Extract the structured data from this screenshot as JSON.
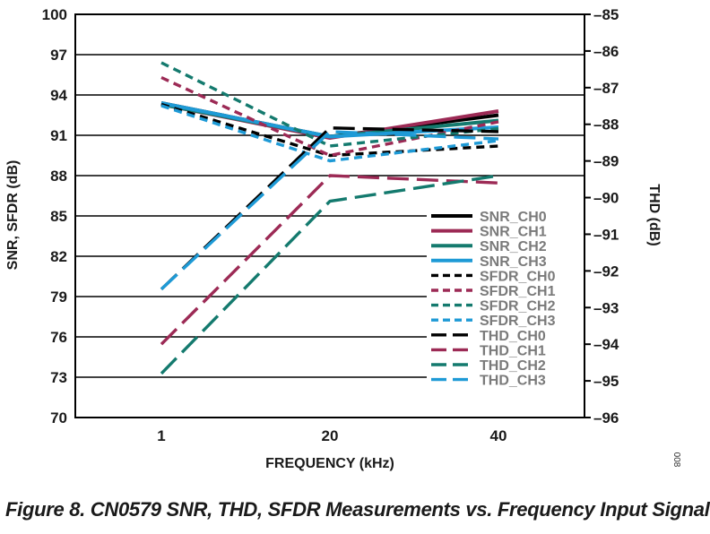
{
  "chart_data": {
    "type": "line",
    "title": "",
    "xlabel": "FREQUENCY (kHz)",
    "ylabel": "SNR, SFDR (dB)",
    "y2label": "THD (dB)",
    "categories": [
      "1",
      "20",
      "40"
    ],
    "ylim": [
      70,
      100
    ],
    "yticks": [
      100,
      97,
      94,
      91,
      88,
      85,
      82,
      79,
      76,
      73,
      70
    ],
    "y2lim": [
      -96,
      -85
    ],
    "y2ticks": [
      "–85",
      "–86",
      "–87",
      "–88",
      "–89",
      "–90",
      "–91",
      "–92",
      "–93",
      "–94",
      "–95",
      "–96"
    ],
    "y2tick_values": [
      -85,
      -86,
      -87,
      -88,
      -89,
      -90,
      -91,
      -92,
      -93,
      -94,
      -95,
      -96
    ],
    "grid": true,
    "legend_position": "bottom-right",
    "series": [
      {
        "name": "SNR_CH0",
        "axis": "left",
        "style": "solid",
        "color": "#000000",
        "values": [
          93.4,
          90.9,
          92.5
        ]
      },
      {
        "name": "SNR_CH1",
        "axis": "left",
        "style": "solid",
        "color": "#9c2a55",
        "values": [
          93.3,
          90.8,
          92.8
        ]
      },
      {
        "name": "SNR_CH2",
        "axis": "left",
        "style": "solid",
        "color": "#147a6e",
        "values": [
          93.3,
          90.9,
          92.1
        ]
      },
      {
        "name": "SNR_CH3",
        "axis": "left",
        "style": "solid",
        "color": "#1e9ad6",
        "values": [
          93.4,
          90.9,
          91.6
        ]
      },
      {
        "name": "SFDR_CH0",
        "axis": "left",
        "style": "short-dash",
        "color": "#000000",
        "values": [
          93.3,
          89.5,
          90.2
        ]
      },
      {
        "name": "SFDR_CH1",
        "axis": "left",
        "style": "short-dash",
        "color": "#9c2a55",
        "values": [
          95.3,
          89.5,
          92.0
        ]
      },
      {
        "name": "SFDR_CH2",
        "axis": "left",
        "style": "short-dash",
        "color": "#147a6e",
        "values": [
          96.4,
          90.2,
          91.5
        ]
      },
      {
        "name": "SFDR_CH3",
        "axis": "left",
        "style": "short-dash",
        "color": "#1e9ad6",
        "values": [
          93.2,
          89.1,
          90.6
        ]
      },
      {
        "name": "THD_CH0",
        "axis": "right",
        "style": "long-dash",
        "color": "#000000",
        "values": [
          -92.5,
          -88.1,
          -88.2
        ]
      },
      {
        "name": "THD_CH1",
        "axis": "right",
        "style": "long-dash",
        "color": "#9c2a55",
        "values": [
          -94.0,
          -89.4,
          -89.6
        ]
      },
      {
        "name": "THD_CH2",
        "axis": "right",
        "style": "long-dash",
        "color": "#147a6e",
        "values": [
          -94.8,
          -90.1,
          -89.4
        ]
      },
      {
        "name": "THD_CH3",
        "axis": "right",
        "style": "long-dash",
        "color": "#1e9ad6",
        "values": [
          -92.5,
          -88.2,
          -88.4
        ]
      }
    ]
  },
  "figure_id": "008",
  "caption": "Figure 8. CN0579 SNR, THD, SFDR Measurements vs. Frequency Input Signal"
}
